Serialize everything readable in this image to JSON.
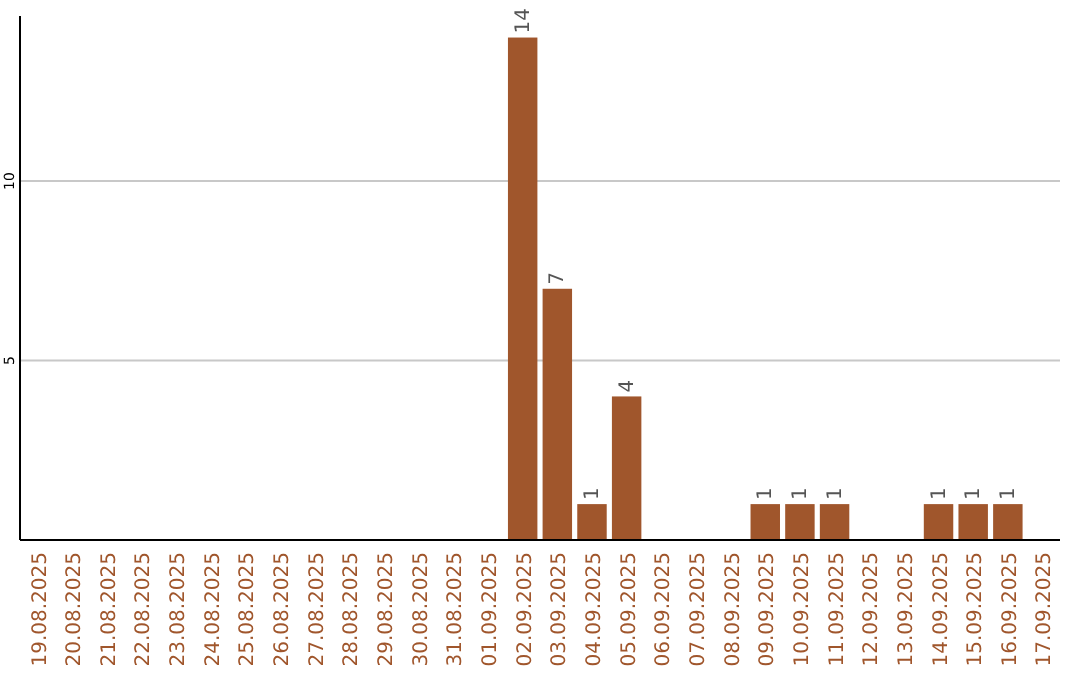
{
  "chart_data": {
    "type": "bar",
    "categories": [
      "19.08.2025",
      "20.08.2025",
      "21.08.2025",
      "22.08.2025",
      "23.08.2025",
      "24.08.2025",
      "25.08.2025",
      "26.08.2025",
      "27.08.2025",
      "28.08.2025",
      "29.08.2025",
      "30.08.2025",
      "31.08.2025",
      "01.09.2025",
      "02.09.2025",
      "03.09.2025",
      "04.09.2025",
      "05.09.2025",
      "06.09.2025",
      "07.09.2025",
      "08.09.2025",
      "09.09.2025",
      "10.09.2025",
      "11.09.2025",
      "12.09.2025",
      "13.09.2025",
      "14.09.2025",
      "15.09.2025",
      "16.09.2025",
      "17.09.2025"
    ],
    "values": [
      0,
      0,
      0,
      0,
      0,
      0,
      0,
      0,
      0,
      0,
      0,
      0,
      0,
      0,
      14,
      7,
      1,
      4,
      0,
      0,
      0,
      1,
      1,
      1,
      0,
      0,
      1,
      1,
      1,
      0
    ],
    "value_labels": [
      null,
      null,
      null,
      null,
      null,
      null,
      null,
      null,
      null,
      null,
      null,
      null,
      null,
      null,
      "14",
      "7",
      "1",
      "4",
      null,
      null,
      null,
      "1",
      "1",
      "1",
      null,
      null,
      "1",
      "1",
      "1",
      null
    ],
    "color": "#a0562c",
    "ylim": [
      0,
      14.6
    ],
    "yticks": [
      5,
      10
    ],
    "grid": "y"
  }
}
